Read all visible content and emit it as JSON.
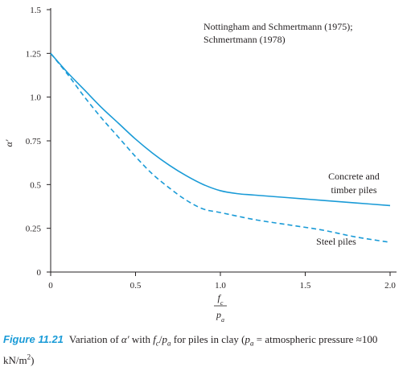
{
  "chart_data": {
    "type": "line",
    "title": "",
    "xlabel": "fc / pa",
    "ylabel": "α′",
    "xlim": [
      0,
      2.0
    ],
    "ylim": [
      0,
      1.5
    ],
    "xticks": [
      {
        "value": 0,
        "label": "0"
      },
      {
        "value": 0.5,
        "label": "0.5"
      },
      {
        "value": 1.0,
        "label": "1.0"
      },
      {
        "value": 1.5,
        "label": "1.5"
      },
      {
        "value": 2.0,
        "label": "2.0"
      }
    ],
    "yticks": [
      {
        "value": 0,
        "label": "0"
      },
      {
        "value": 0.25,
        "label": "0.25"
      },
      {
        "value": 0.5,
        "label": "0.5"
      },
      {
        "value": 0.75,
        "label": "0.75"
      },
      {
        "value": 1.0,
        "label": "1.0"
      },
      {
        "value": 1.25,
        "label": "1.25"
      },
      {
        "value": 1.5,
        "label": "1.5"
      }
    ],
    "grid": false,
    "source_note": [
      "Nottingham and Schmertmann (1975);",
      "Schmertmann (1978)"
    ],
    "series": [
      {
        "name": "Concrete and timber piles",
        "label_lines": [
          "Concrete and",
          "timber piles"
        ],
        "style": "solid",
        "color": "#1a9bd7",
        "x": [
          0,
          0.1,
          0.2,
          0.3,
          0.4,
          0.5,
          0.6,
          0.7,
          0.8,
          0.9,
          1.0,
          1.1,
          1.2,
          1.4,
          1.6,
          1.8,
          2.0
        ],
        "y": [
          1.25,
          1.14,
          1.04,
          0.94,
          0.85,
          0.76,
          0.68,
          0.61,
          0.55,
          0.5,
          0.465,
          0.448,
          0.44,
          0.425,
          0.41,
          0.395,
          0.38
        ]
      },
      {
        "name": "Steel piles",
        "label_lines": [
          "Steel piles"
        ],
        "style": "dashed",
        "color": "#1a9bd7",
        "x": [
          0,
          0.1,
          0.2,
          0.3,
          0.4,
          0.5,
          0.6,
          0.7,
          0.8,
          0.9,
          1.0,
          1.2,
          1.4,
          1.6,
          1.8,
          2.0
        ],
        "y": [
          1.25,
          1.13,
          1.0,
          0.88,
          0.77,
          0.66,
          0.56,
          0.48,
          0.41,
          0.36,
          0.34,
          0.3,
          0.27,
          0.24,
          0.2,
          0.17
        ]
      }
    ]
  },
  "caption": {
    "label": "Figure 11.21",
    "text": "Variation of α′ with fc/pa for piles in clay (pa = atmospheric pressure ≈100 kN/m²)"
  }
}
